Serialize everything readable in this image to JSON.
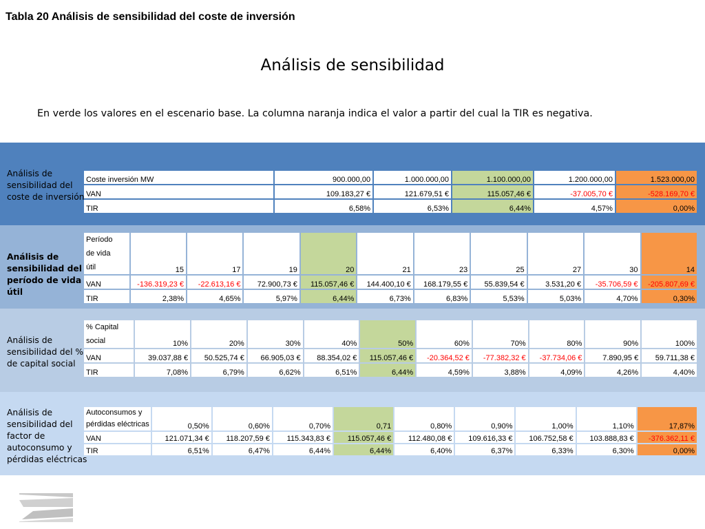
{
  "doc_title": "Tabla 20 Análisis de sensibilidad del coste de inversión",
  "main_title": "Análisis de sensibilidad",
  "note": "En verde los valores en el escenario base. La columna naranja indica el valor a partir del cual la TIR es negativa.",
  "colors": {
    "band1": "#4f81bd",
    "band2": "#95b3d7",
    "band3": "#b8cce4",
    "band4": "#c5d9f1",
    "green": "#c4d79b",
    "orange": "#f79646",
    "negative": "#ff0000"
  },
  "t1": {
    "label_lines": [
      "Análisis de",
      "sensibilidad del",
      "coste de inversión"
    ],
    "header": [
      "Coste inversión MW",
      "900.000,00",
      "1.000.000,00",
      "1.100.000,00",
      "1.200.000,00",
      "1.523.000,00"
    ],
    "rows": [
      [
        "VAN",
        "109.183,27 €",
        "121.679,51 €",
        "115.057,46 €",
        "-37.005,70 €",
        "-528.169,70 €"
      ],
      [
        "TIR",
        "6,58%",
        "6,53%",
        "6,44%",
        "4,57%",
        "0,00%"
      ]
    ]
  },
  "t2": {
    "label_lines": [
      "Análisis de",
      "sensibilidad del",
      "período de vida",
      "útil"
    ],
    "header_lines": [
      "Período",
      "de vida",
      "útil"
    ],
    "header": [
      "15",
      "17",
      "19",
      "20",
      "21",
      "23",
      "25",
      "27",
      "30",
      "14"
    ],
    "rows": [
      [
        "VAN",
        "-136.319,23 €",
        "-22.613,16 €",
        "72.900,73 €",
        "115.057,46 €",
        "144.400,10 €",
        "168.179,55 €",
        "55.839,54 €",
        "3.531,20 €",
        "-35.706,59 €",
        "-205.807,69 €"
      ],
      [
        "TIR",
        "2,38%",
        "4,65%",
        "5,97%",
        "6,44%",
        "6,73%",
        "6,83%",
        "5,53%",
        "5,03%",
        "4,70%",
        "0,30%"
      ]
    ]
  },
  "t3": {
    "label_lines": [
      "Análisis de",
      "sensibilidad del %",
      "de capital social"
    ],
    "header_lines": [
      "% Capital",
      "social"
    ],
    "header": [
      "10%",
      "20%",
      "30%",
      "40%",
      "50%",
      "60%",
      "70%",
      "80%",
      "90%",
      "100%"
    ],
    "rows": [
      [
        "VAN",
        "39.037,88 €",
        "50.525,74 €",
        "66.905,03 €",
        "88.354,02 €",
        "115.057,46 €",
        "-20.364,52 €",
        "-77.382,32 €",
        "-37.734,06 €",
        "7.890,95 €",
        "59.711,38 €"
      ],
      [
        "TIR",
        "7,08%",
        "6,79%",
        "6,62%",
        "6,51%",
        "6,44%",
        "4,59%",
        "3,88%",
        "4,09%",
        "4,26%",
        "4,40%"
      ]
    ]
  },
  "t4": {
    "label_lines": [
      "Análisis de",
      "sensibilidad del",
      "factor de",
      "autoconsumo y",
      "pérdidas eléctricas"
    ],
    "header_lines": [
      "Autoconsumos y",
      "pérdidas eléctricas"
    ],
    "header": [
      "0,50%",
      "0,60%",
      "0,70%",
      "0,71",
      "0,80%",
      "0,90%",
      "1,00%",
      "1,10%",
      "17,87%"
    ],
    "rows": [
      [
        "VAN",
        "121.071,34 €",
        "118.207,59 €",
        "115.343,83 €",
        "115.057,46 €",
        "112.480,08 €",
        "109.616,33 €",
        "106.752,58 €",
        "103.888,83 €",
        "-376.362,11 €"
      ],
      [
        "TIR",
        "6,51%",
        "6,47%",
        "6,44%",
        "6,44%",
        "6,40%",
        "6,37%",
        "6,33%",
        "6,30%",
        "0,00%"
      ]
    ]
  }
}
